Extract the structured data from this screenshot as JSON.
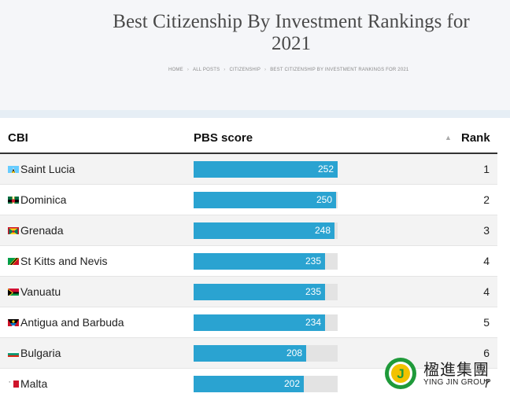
{
  "header": {
    "title": "Best Citizenship By Investment Rankings for 2021",
    "breadcrumb": [
      "HOME",
      "ALL POSTS",
      "CITIZENSHIP",
      "BEST CITIZENSHIP BY INVESTMENT RANKINGS FOR 2021"
    ]
  },
  "table": {
    "columns": {
      "cbi": "CBI",
      "pbs": "PBS score",
      "sort_indicator": "▲",
      "rank": "Rank"
    },
    "score_max": 252,
    "rows": [
      {
        "country": "Saint Lucia",
        "flag": "saint-lucia-flag-icon",
        "score": 252,
        "rank": "1"
      },
      {
        "country": "Dominica",
        "flag": "dominica-flag-icon",
        "score": 250,
        "rank": "2"
      },
      {
        "country": "Grenada",
        "flag": "grenada-flag-icon",
        "score": 248,
        "rank": "3"
      },
      {
        "country": "St Kitts and Nevis",
        "flag": "st-kitts-and-nevis-flag-icon",
        "score": 235,
        "rank": "4"
      },
      {
        "country": "Vanuatu",
        "flag": "vanuatu-flag-icon",
        "score": 235,
        "rank": "4"
      },
      {
        "country": "Antigua and Barbuda",
        "flag": "antigua-and-barbuda-flag-icon",
        "score": 234,
        "rank": "5"
      },
      {
        "country": "Bulgaria",
        "flag": "bulgaria-flag-icon",
        "score": 208,
        "rank": "6"
      },
      {
        "country": "Malta",
        "flag": "malta-flag-icon",
        "score": 202,
        "rank": "7"
      }
    ]
  },
  "watermark": {
    "chinese": "楹進集團",
    "english": "YING JIN GROUP",
    "logo_letter": "J"
  },
  "colors": {
    "bar": "#2aa3d1",
    "bar_track": "#e3e3e3",
    "hero_bg": "#f5f6f9",
    "logo_green": "#1f9a3a",
    "logo_yellow": "#f2c200"
  }
}
